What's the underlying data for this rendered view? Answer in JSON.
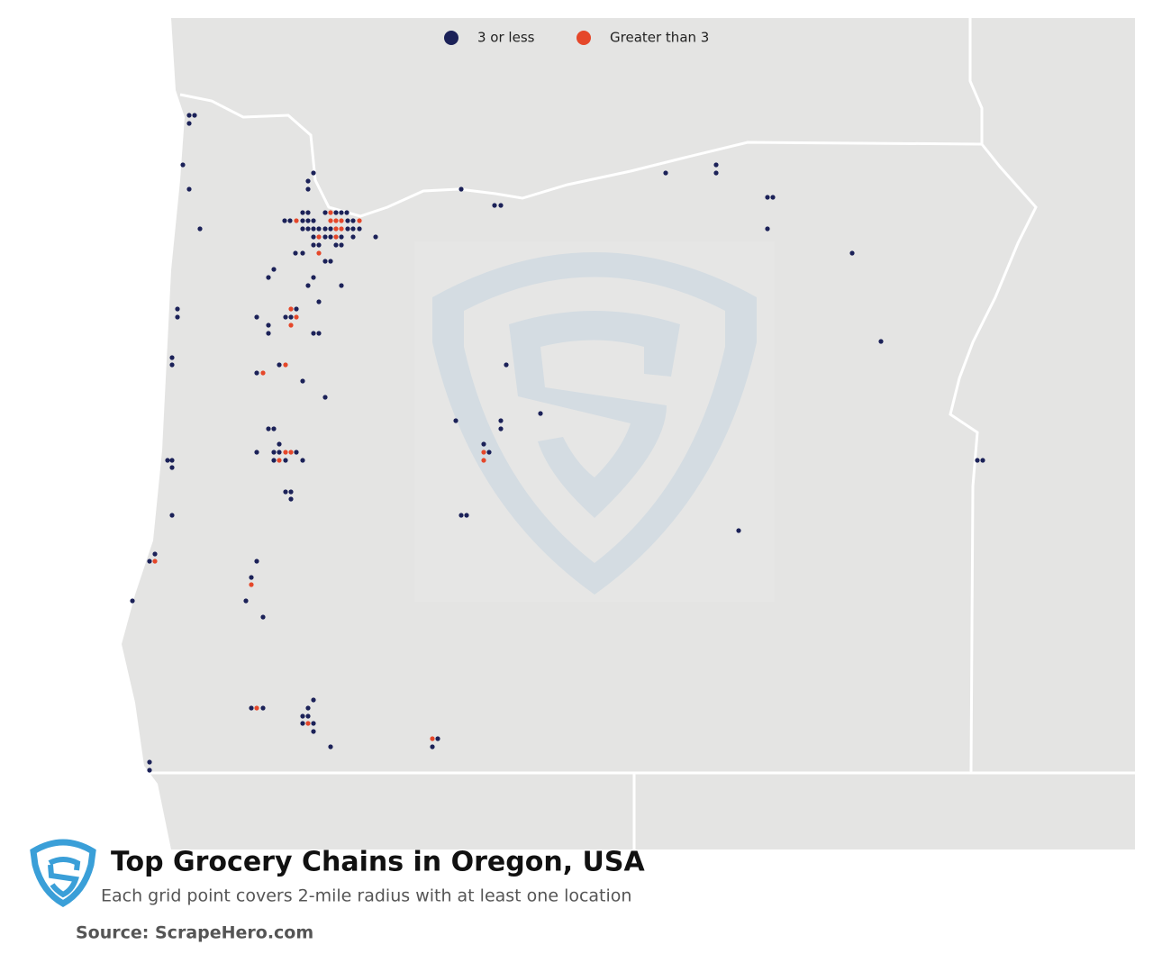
{
  "legend": {
    "items": [
      {
        "label": "3 or less",
        "color": "#1b2158"
      },
      {
        "label": "Greater than 3",
        "color": "#e5472a"
      }
    ]
  },
  "title": "Top Grocery Chains in Oregon, USA",
  "subtitle": "Each grid point covers 2-mile radius with at least one location",
  "source": "Source: ScrapeHero.com"
}
